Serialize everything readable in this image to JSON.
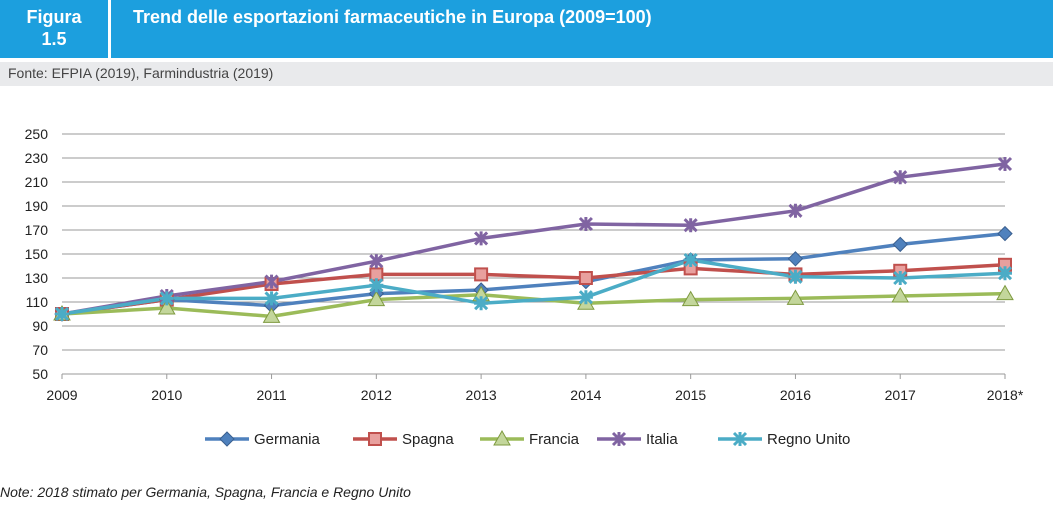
{
  "figure_label": "Figura 1.5",
  "figure_label_parts": [
    "Figura",
    "1.5"
  ],
  "title": "Trend delle esportazioni farmaceutiche in Europa (2009=100)",
  "source": "Fonte: EFPIA (2019), Farmindustria (2019)",
  "note": "Note: 2018 stimato per Germania, Spagna, Francia e Regno Unito",
  "chart_data": {
    "type": "line",
    "categories": [
      "2009",
      "2010",
      "2011",
      "2012",
      "2013",
      "2014",
      "2015",
      "2016",
      "2017",
      "2018*"
    ],
    "ylim": [
      50,
      250
    ],
    "yticks": [
      50,
      70,
      90,
      110,
      130,
      150,
      170,
      190,
      210,
      230,
      250
    ],
    "grid": true,
    "legend_position": "bottom",
    "series": [
      {
        "name": "Germania",
        "color": "#4f81bd",
        "marker": "diamond",
        "values": [
          100,
          112,
          107,
          117,
          120,
          127,
          145,
          146,
          158,
          167
        ]
      },
      {
        "name": "Spagna",
        "color": "#c0504d",
        "marker": "square",
        "values": [
          100,
          112,
          125,
          133,
          133,
          130,
          138,
          133,
          136,
          141
        ]
      },
      {
        "name": "Francia",
        "color": "#9bbb59",
        "marker": "triangle",
        "values": [
          100,
          105,
          98,
          112,
          116,
          109,
          112,
          113,
          115,
          117
        ]
      },
      {
        "name": "Italia",
        "color": "#8064a2",
        "marker": "x",
        "values": [
          100,
          115,
          127,
          144,
          163,
          175,
          174,
          186,
          214,
          225
        ]
      },
      {
        "name": "Regno Unito",
        "color": "#4bacc6",
        "marker": "star",
        "values": [
          100,
          113,
          113,
          124,
          109,
          114,
          145,
          131,
          130,
          134
        ]
      }
    ]
  }
}
